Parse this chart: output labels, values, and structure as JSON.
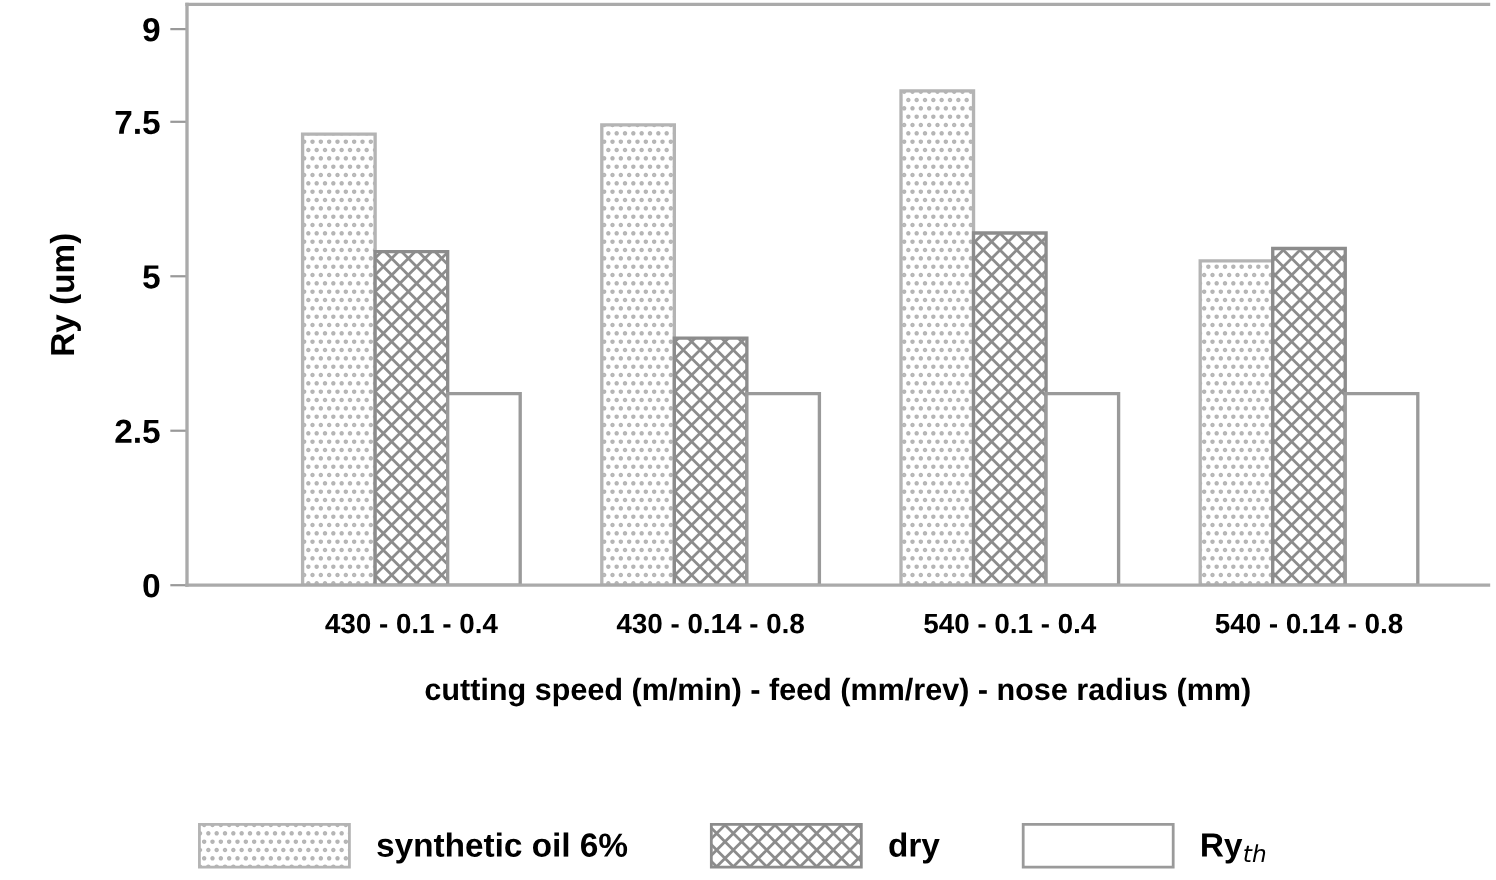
{
  "chart_data": {
    "type": "bar",
    "ylabel": "Ry (um)",
    "xlabel": "cutting speed (m/min) - feed (mm/rev) - nose radius (mm)",
    "categories": [
      "430 - 0.1 - 0.4",
      "430 - 0.14 - 0.8",
      "540 - 0.1 - 0.4",
      "540 - 0.14 - 0.8"
    ],
    "series": [
      {
        "name": "synthetic oil 6%",
        "color": "#b4b4b4",
        "values": [
          7.3,
          7.45,
          8.0,
          5.25
        ]
      },
      {
        "name": "dry",
        "color": "#8c8c8c",
        "values": [
          5.4,
          4.0,
          5.7,
          5.45
        ]
      },
      {
        "name": "Ry$_{th}$",
        "color": "#ffffff",
        "values": [
          3.1,
          3.1,
          3.1,
          3.1
        ]
      }
    ],
    "ylim": [
      0,
      9.4
    ],
    "yticks": [
      0,
      2.5,
      5,
      7.5,
      9
    ],
    "grid": false,
    "legend": "bottom"
  }
}
